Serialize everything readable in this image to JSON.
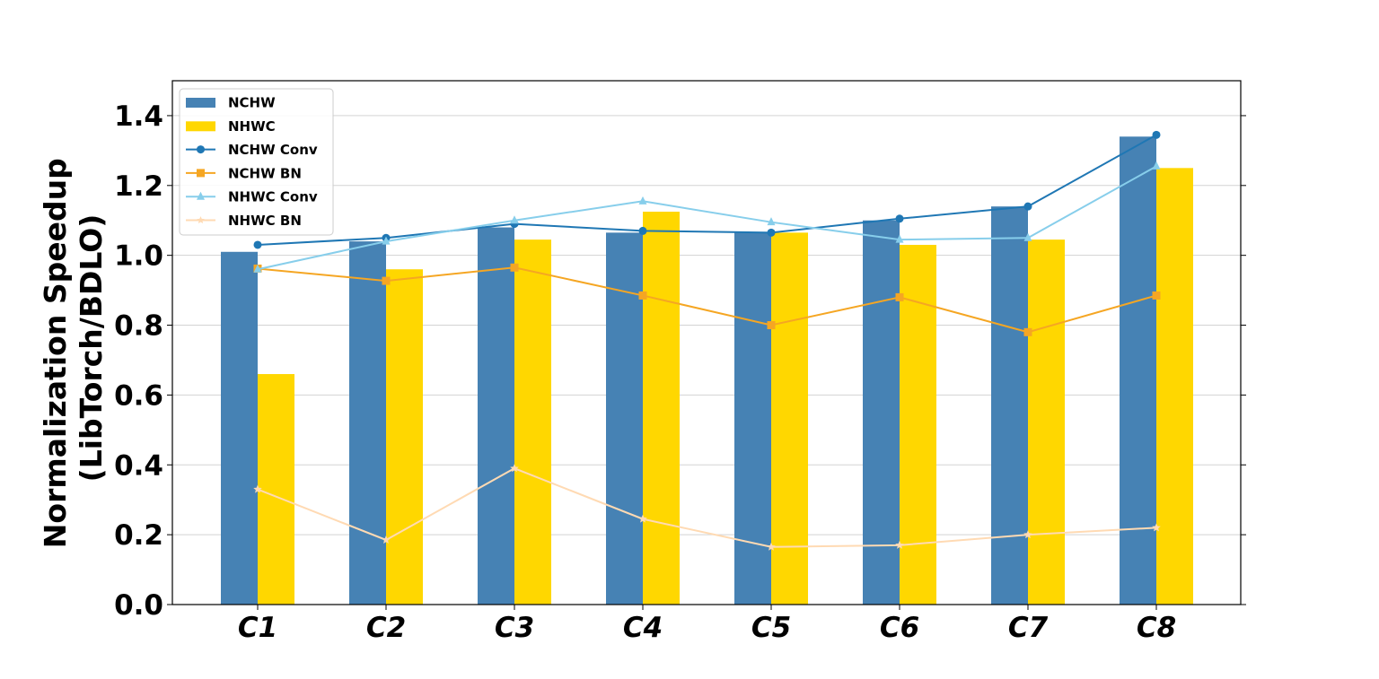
{
  "chart_data": {
    "type": "bar",
    "title": "",
    "xlabel": "",
    "ylabel": [
      "Normalization Speedup",
      "(LibTorch/BDLO)"
    ],
    "categories": [
      "C1",
      "C2",
      "C3",
      "C4",
      "C5",
      "C6",
      "C7",
      "C8"
    ],
    "ylim": [
      0,
      1.5
    ],
    "yticks": [
      "0.0",
      "0.2",
      "0.4",
      "0.6",
      "0.8",
      "1.0",
      "1.2",
      "1.4"
    ],
    "grid": "horizontal",
    "legend_position": "top-left",
    "bar_series": [
      {
        "name": "NCHW",
        "color": "#4682b4",
        "values": [
          1.01,
          1.04,
          1.08,
          1.065,
          1.065,
          1.1,
          1.14,
          1.34
        ]
      },
      {
        "name": "NHWC",
        "color": "#ffd700",
        "values": [
          0.66,
          0.96,
          1.045,
          1.125,
          1.065,
          1.03,
          1.045,
          1.25
        ]
      }
    ],
    "line_series": [
      {
        "name": "NCHW Conv",
        "color": "#1f77b4",
        "marker": "circle",
        "values": [
          1.03,
          1.05,
          1.09,
          1.07,
          1.065,
          1.105,
          1.14,
          1.345
        ]
      },
      {
        "name": "NCHW BN",
        "color": "#f5a623",
        "marker": "square",
        "values": [
          0.962,
          0.927,
          0.965,
          0.885,
          0.8,
          0.88,
          0.78,
          0.885
        ]
      },
      {
        "name": "NHWC Conv",
        "color": "#87ceeb",
        "marker": "triangle",
        "values": [
          0.96,
          1.04,
          1.1,
          1.155,
          1.095,
          1.045,
          1.05,
          1.255
        ]
      },
      {
        "name": "NHWC BN",
        "color": "#ffdab3",
        "marker": "star",
        "values": [
          0.33,
          0.185,
          0.39,
          0.245,
          0.165,
          0.17,
          0.2,
          0.22
        ]
      }
    ]
  }
}
